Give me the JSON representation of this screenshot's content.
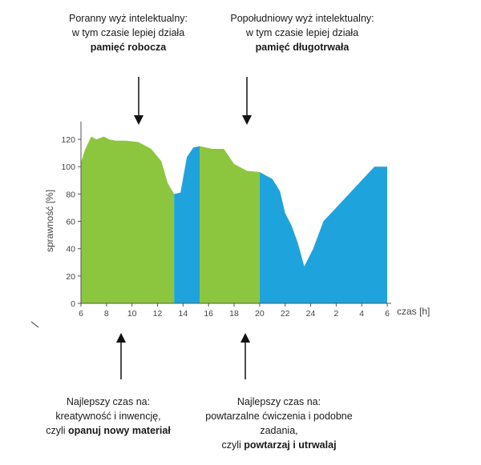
{
  "notes": {
    "top_left": {
      "line1": "Poranny wyż intelektualny:",
      "line2": "w tym czasie lepiej działa",
      "bold": "pamięć robocza"
    },
    "top_right": {
      "line1": "Popołudniowy wyż intelektualny:",
      "line2": "w tym czasie lepiej działa",
      "bold": "pamięć długotrwała"
    },
    "bottom_left": {
      "line1": "Najlepszy czas na:",
      "line2": "kreatywność i inwencję,",
      "line3_prefix": "czyli ",
      "bold": "opanuj nowy materiał"
    },
    "bottom_right": {
      "line1": "Najlepszy czas na:",
      "line2": "powtarzalne ćwiczenia i podobne",
      "line3": "zadania,",
      "line4_prefix": "czyli ",
      "bold": "powtarzaj i utrwalaj"
    }
  },
  "chart_data": {
    "type": "area",
    "xlabel": "czas [h]",
    "ylabel": "sprawność [%]",
    "ylim": [
      0,
      130
    ],
    "yticks": [
      0,
      20,
      40,
      60,
      80,
      100,
      120
    ],
    "xticks": [
      "6",
      "8",
      "10",
      "12",
      "14",
      "16",
      "18",
      "20",
      "22",
      "24",
      "2",
      "4",
      "6"
    ],
    "x_hours_elapsed": [
      0,
      0.3,
      0.8,
      1.2,
      1.8,
      2.2,
      2.7,
      3.5,
      4.5,
      5.5,
      6.3,
      6.8,
      7.3,
      7.8,
      8.3,
      8.8,
      9.3,
      9.8,
      10.3,
      11.2,
      12.0,
      13.0,
      14.0,
      15.0,
      15.6,
      16.0,
      16.5,
      17.0,
      17.5,
      18.2,
      19.0,
      20.0,
      21.0,
      22.0,
      23.0,
      24.0
    ],
    "y_values": [
      103,
      112,
      122,
      120,
      122,
      120,
      119,
      119,
      118,
      113,
      104,
      88,
      80,
      81,
      107,
      114,
      115,
      114,
      113,
      113,
      102,
      97,
      96,
      91,
      82,
      66,
      57,
      44,
      27,
      40,
      60,
      70,
      80,
      90,
      100,
      100
    ],
    "bands": [
      {
        "from_hour": 0,
        "to_hour": 7.3,
        "color": "#8cc63f",
        "meaning": "peak"
      },
      {
        "from_hour": 7.3,
        "to_hour": 9.3,
        "color": "#1fa3dc",
        "meaning": "dip"
      },
      {
        "from_hour": 9.3,
        "to_hour": 14.0,
        "color": "#8cc63f",
        "meaning": "peak"
      },
      {
        "from_hour": 14.0,
        "to_hour": 24.0,
        "color": "#1fa3dc",
        "meaning": "dip"
      }
    ]
  }
}
